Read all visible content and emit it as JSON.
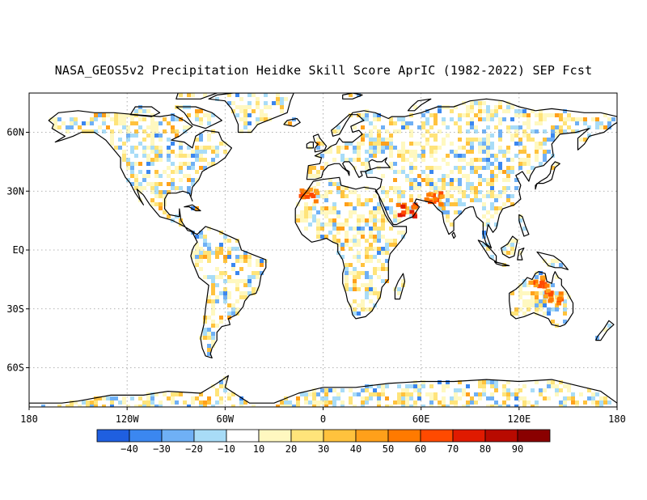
{
  "title": "NASA_GEOS5v2 Precipitation Heidke Skill Score AprIC (1982-2022) SEP Fcst",
  "colors": {
    "land_outline": "#000000",
    "grid": "#9a9a9a",
    "background": "#ffffff"
  },
  "map": {
    "projection": "equirectangular",
    "lon_range": [
      -180,
      180
    ],
    "lat_range": [
      -80,
      80
    ],
    "grid": true,
    "lat_ticks": [
      {
        "value": 60,
        "label": "60N"
      },
      {
        "value": 30,
        "label": "30N"
      },
      {
        "value": 0,
        "label": "EQ"
      },
      {
        "value": -30,
        "label": "30S"
      },
      {
        "value": -60,
        "label": "60S"
      }
    ],
    "lon_ticks": [
      {
        "value": -180,
        "label": "180"
      },
      {
        "value": -120,
        "label": "120W"
      },
      {
        "value": -60,
        "label": "60W"
      },
      {
        "value": 0,
        "label": "0"
      },
      {
        "value": 60,
        "label": "60E"
      },
      {
        "value": 120,
        "label": "120E"
      },
      {
        "value": 180,
        "label": "180"
      }
    ]
  },
  "colorbar": {
    "bins": [
      {
        "color": "#1f5fe0"
      },
      {
        "color": "#3b87f0"
      },
      {
        "color": "#6fb0f5"
      },
      {
        "color": "#a8dcf7"
      },
      {
        "color": "#ffffff"
      },
      {
        "color": "#fff8c0"
      },
      {
        "color": "#ffe47a"
      },
      {
        "color": "#ffc23d"
      },
      {
        "color": "#ffa01a"
      },
      {
        "color": "#ff7a00"
      },
      {
        "color": "#ff4a00"
      },
      {
        "color": "#e01a00"
      },
      {
        "color": "#b80a00"
      },
      {
        "color": "#8a0000"
      }
    ],
    "labels": [
      "-40",
      "-30",
      "-20",
      "-10",
      "10",
      "20",
      "30",
      "40",
      "50",
      "60",
      "70",
      "80",
      "90"
    ]
  },
  "hotspots": [
    {
      "name": "arabian-peninsula",
      "lon": 50,
      "lat": 21,
      "level": 70
    },
    {
      "name": "pakistan",
      "lon": 66,
      "lat": 27,
      "level": 60
    },
    {
      "name": "north-africa",
      "lon": -10,
      "lat": 29,
      "level": 60
    },
    {
      "name": "north-australia",
      "lon": 131,
      "lat": -16,
      "level": 60
    },
    {
      "name": "central-australia",
      "lon": 140,
      "lat": -23,
      "level": 60
    }
  ]
}
